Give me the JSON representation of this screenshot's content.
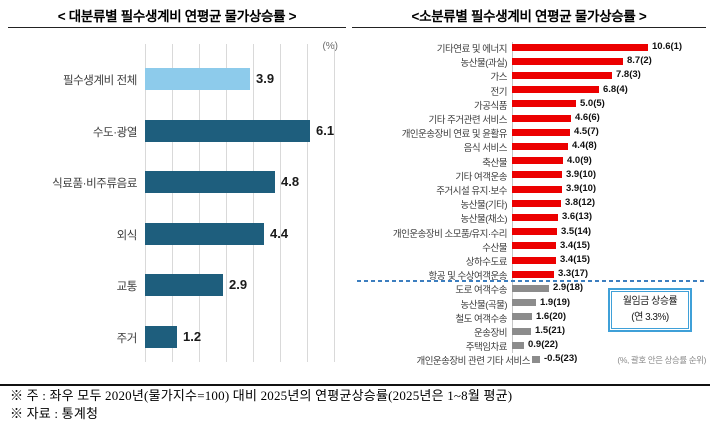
{
  "chart_data": [
    {
      "type": "bar",
      "orientation": "horizontal",
      "title": "< 대분류별 필수생계비 연평균 물가상승률 >",
      "unit_label": "(%)",
      "categories": [
        "필수생계비 전체",
        "수도·광열",
        "식료품·비주류음료",
        "외식",
        "교통",
        "주거"
      ],
      "values": [
        3.9,
        6.1,
        4.8,
        4.4,
        2.9,
        1.2
      ],
      "value_labels": [
        "3.9",
        "6.1",
        "4.8",
        "4.4",
        "2.9",
        "1.2"
      ],
      "highlight_index": 0,
      "bar_color": "#1e5e7d",
      "highlight_color": "#8dcbeb",
      "xlim": [
        0,
        7
      ],
      "grid": true,
      "legend": "none"
    },
    {
      "type": "bar",
      "orientation": "horizontal",
      "title": "<소분류별 필수생계비 연평균 물가상승률 >",
      "note": "(%, 괄호 안은 상승률 순위)",
      "bar_color_above": "#ec0000",
      "bar_color_below": "#8c8c8c",
      "xlim": [
        -0.5,
        11
      ],
      "items": [
        {
          "label": "기타연료 및 에너지",
          "value": 10.6,
          "rank": 1,
          "display": "10.6(1)"
        },
        {
          "label": "농산물(과실)",
          "value": 8.7,
          "rank": 2,
          "display": "8.7(2)"
        },
        {
          "label": "가스",
          "value": 7.8,
          "rank": 3,
          "display": "7.8(3)"
        },
        {
          "label": "전기",
          "value": 6.8,
          "rank": 4,
          "display": "6.8(4)"
        },
        {
          "label": "가공식품",
          "value": 5.0,
          "rank": 5,
          "display": "5.0(5)"
        },
        {
          "label": "기타 주거관련 서비스",
          "value": 4.6,
          "rank": 6,
          "display": "4.6(6)"
        },
        {
          "label": "개인운송장비 연료 및 윤활유",
          "value": 4.5,
          "rank": 7,
          "display": "4.5(7)"
        },
        {
          "label": "음식 서비스",
          "value": 4.4,
          "rank": 8,
          "display": "4.4(8)"
        },
        {
          "label": "축산물",
          "value": 4.0,
          "rank": 9,
          "display": "4.0(9)"
        },
        {
          "label": "기타 여객운송",
          "value": 3.9,
          "rank": 10,
          "display": "3.9(10)"
        },
        {
          "label": "주거시설 유지·보수",
          "value": 3.9,
          "rank": 10,
          "display": "3.9(10)"
        },
        {
          "label": "농산물(기타)",
          "value": 3.8,
          "rank": 12,
          "display": "3.8(12)"
        },
        {
          "label": "농산물(채소)",
          "value": 3.6,
          "rank": 13,
          "display": "3.6(13)"
        },
        {
          "label": "개인운송장비 소모품/유지·수리",
          "value": 3.5,
          "rank": 14,
          "display": "3.5(14)"
        },
        {
          "label": "수산물",
          "value": 3.4,
          "rank": 15,
          "display": "3.4(15)"
        },
        {
          "label": "상하수도료",
          "value": 3.4,
          "rank": 15,
          "display": "3.4(15)"
        },
        {
          "label": "항공 및 수상여객운송",
          "value": 3.3,
          "rank": 17,
          "display": "3.3(17)"
        },
        {
          "label": "도로 여객수송",
          "value": 2.9,
          "rank": 18,
          "display": "2.9(18)"
        },
        {
          "label": "농산물(곡물)",
          "value": 1.9,
          "rank": 19,
          "display": "1.9(19)"
        },
        {
          "label": "철도 여객수송",
          "value": 1.6,
          "rank": 20,
          "display": "1.6(20)"
        },
        {
          "label": "운송장비",
          "value": 1.5,
          "rank": 21,
          "display": "1.5(21)"
        },
        {
          "label": "주택임차료",
          "value": 0.9,
          "rank": 22,
          "display": "0.9(22)"
        },
        {
          "label": "개인운송장비 관련 기타 서비스",
          "value": -0.5,
          "rank": 23,
          "display": "-0.5(23)"
        }
      ],
      "reference_line": {
        "label": "월임금 상승률",
        "sublabel": "(연 3.3%)",
        "value": 3.3,
        "color": "#3c7ebf"
      }
    }
  ],
  "footer": {
    "note": "※  주 : 좌우 모두 2020년(물가지수=100) 대비 2025년의 연평균상승률(2025년은 1~8월 평균)",
    "source": "※ 자료 : 통계청"
  }
}
